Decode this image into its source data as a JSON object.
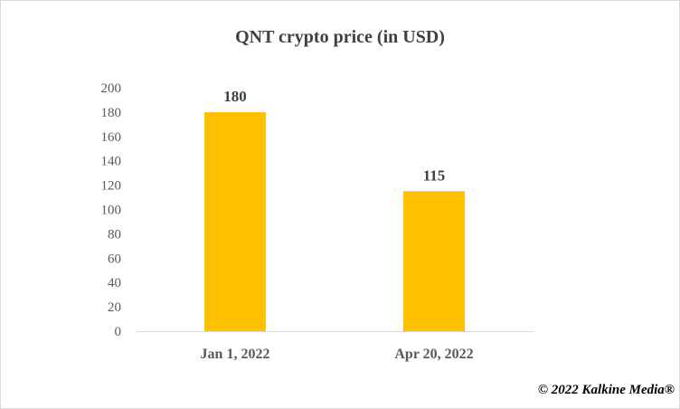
{
  "chart_data": {
    "type": "bar",
    "title": "QNT crypto price (in USD)",
    "categories": [
      "Jan 1, 2022",
      "Apr 20, 2022"
    ],
    "values": [
      180,
      115
    ],
    "data_labels": [
      "180",
      "115"
    ],
    "xlabel": "",
    "ylabel": "",
    "ylim": [
      0,
      200
    ],
    "yticks": [
      0,
      20,
      40,
      60,
      80,
      100,
      120,
      140,
      160,
      180,
      200
    ],
    "grid": false,
    "legend": "none",
    "bar_color": "#FFC000"
  },
  "footer": {
    "copyright": "© 2022 Kalkine Media®"
  },
  "colors": {
    "title_text": "#404040",
    "axis_text": "#595959",
    "axis_line": "#d9d9d9"
  }
}
